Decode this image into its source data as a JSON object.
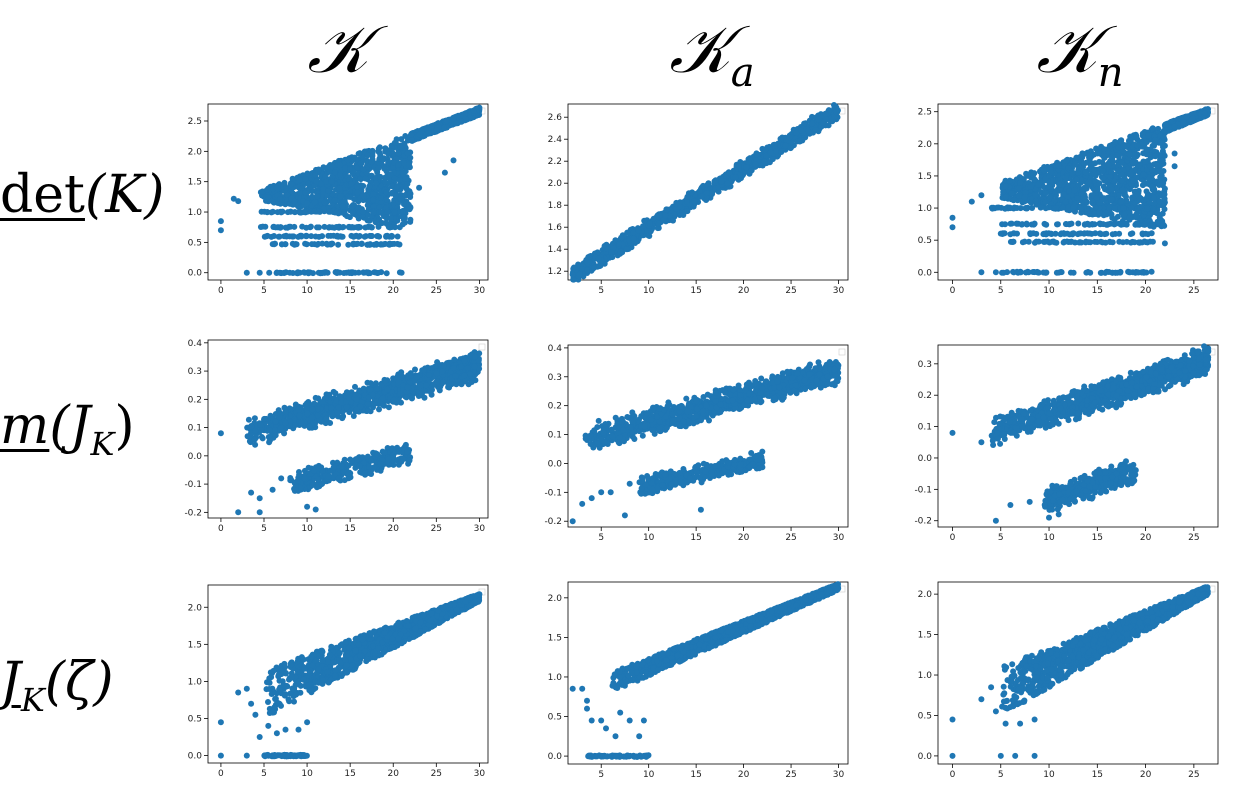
{
  "column_headers": [
    {
      "main": "𝒦",
      "sub": ""
    },
    {
      "main": "𝒦",
      "sub": "a"
    },
    {
      "main": "𝒦",
      "sub": "n"
    }
  ],
  "row_labels": [
    {
      "under": "det",
      "rest": "(K)",
      "sub": ""
    },
    {
      "under": "m",
      "rest": "(J",
      "sub": "K",
      "close": ")"
    },
    {
      "under": "J",
      "rest": "",
      "sub": "K",
      "close": "(ζ)"
    }
  ],
  "colors": {
    "marker": "#1f77b4",
    "axis": "#000000"
  },
  "chart_data": [
    {
      "type": "scatter",
      "row": 0,
      "col": 0,
      "shape": "fan",
      "xlim": [
        -1.5,
        31
      ],
      "ylim": [
        -0.12,
        2.78
      ],
      "xticks": [
        "0",
        "5",
        "10",
        "15",
        "20",
        "25",
        "30"
      ],
      "yticks": [
        "0.0",
        "0.5",
        "1.0",
        "1.5",
        "2.0",
        "2.5"
      ],
      "tick_values_x": [
        0,
        5,
        10,
        15,
        20,
        25,
        30
      ],
      "tick_values_y": [
        0,
        0.5,
        1.0,
        1.5,
        2.0,
        2.5
      ],
      "main": {
        "x0": 4.5,
        "x1": 30,
        "ylo0": 1.2,
        "ylo1": 2.6,
        "yhi0": 1.35,
        "yhi1": 2.72,
        "xmid": 21,
        "ymidlo": 0.75
      },
      "bands": [
        {
          "x0": 5.5,
          "x1": 21,
          "y": 0.0
        },
        {
          "x0": 6,
          "x1": 21,
          "y": 0.47
        },
        {
          "x0": 5,
          "x1": 21,
          "y": 0.6
        },
        {
          "x0": 4.5,
          "x1": 21,
          "y": 0.75
        },
        {
          "x0": 4,
          "x1": 21,
          "y": 1.0
        }
      ],
      "outliers": [
        [
          0,
          0.85
        ],
        [
          0,
          0.7
        ],
        [
          3,
          0.0
        ],
        [
          4.5,
          0.0
        ],
        [
          2,
          1.18
        ],
        [
          1.5,
          1.22
        ],
        [
          8,
          0.0
        ],
        [
          22,
          1.3
        ],
        [
          23,
          1.4
        ],
        [
          27,
          1.85
        ],
        [
          26,
          1.65
        ]
      ]
    },
    {
      "type": "scatter",
      "row": 0,
      "col": 1,
      "shape": "band",
      "xlim": [
        1.5,
        31
      ],
      "ylim": [
        1.12,
        2.72
      ],
      "xticks": [
        "5",
        "10",
        "15",
        "20",
        "25",
        "30"
      ],
      "yticks": [
        "1.2",
        "1.4",
        "1.6",
        "1.8",
        "2.0",
        "2.2",
        "2.4",
        "2.6"
      ],
      "tick_values_x": [
        5,
        10,
        15,
        20,
        25,
        30
      ],
      "tick_values_y": [
        1.2,
        1.4,
        1.6,
        1.8,
        2.0,
        2.2,
        2.4,
        2.6
      ],
      "main": {
        "x0": 2,
        "x1": 30,
        "y0": 1.17,
        "y1": 2.66,
        "width": 0.06
      },
      "outliers": [
        [
          2,
          1.17
        ],
        [
          3,
          1.22
        ],
        [
          3.5,
          1.21
        ]
      ]
    },
    {
      "type": "scatter",
      "row": 0,
      "col": 2,
      "shape": "fan",
      "xlim": [
        -1.5,
        27.5
      ],
      "ylim": [
        -0.12,
        2.62
      ],
      "xticks": [
        "0",
        "5",
        "10",
        "15",
        "20",
        "25"
      ],
      "yticks": [
        "0.0",
        "0.5",
        "1.0",
        "1.5",
        "2.0",
        "2.5"
      ],
      "tick_values_x": [
        0,
        5,
        10,
        15,
        20,
        25
      ],
      "tick_values_y": [
        0,
        0.5,
        1.0,
        1.5,
        2.0,
        2.5
      ],
      "main": {
        "x0": 5,
        "x1": 26.5,
        "ylo0": 1.15,
        "ylo1": 2.45,
        "yhi0": 1.4,
        "yhi1": 2.55,
        "xmid": 21,
        "ymidlo": 0.7
      },
      "bands": [
        {
          "x0": 5,
          "x1": 21,
          "y": 0.0
        },
        {
          "x0": 6,
          "x1": 21,
          "y": 0.47
        },
        {
          "x0": 5,
          "x1": 21,
          "y": 0.6
        },
        {
          "x0": 5,
          "x1": 21,
          "y": 0.75
        },
        {
          "x0": 4,
          "x1": 21,
          "y": 1.0
        }
      ],
      "outliers": [
        [
          0,
          0.85
        ],
        [
          0,
          0.7
        ],
        [
          3,
          0.0
        ],
        [
          4.5,
          0.0
        ],
        [
          2,
          1.1
        ],
        [
          3,
          1.2
        ],
        [
          22,
          0.45
        ],
        [
          22,
          1.3
        ],
        [
          23,
          1.65
        ],
        [
          23,
          1.85
        ]
      ]
    },
    {
      "type": "scatter",
      "row": 1,
      "col": 0,
      "shape": "two-band",
      "xlim": [
        -1.5,
        31
      ],
      "ylim": [
        -0.22,
        0.41
      ],
      "xticks": [
        "0",
        "5",
        "10",
        "15",
        "20",
        "25",
        "30"
      ],
      "yticks": [
        "-0.2",
        "-0.1",
        "0.0",
        "0.1",
        "0.2",
        "0.3",
        "0.4"
      ],
      "tick_values_x": [
        0,
        5,
        10,
        15,
        20,
        25,
        30
      ],
      "tick_values_y": [
        -0.2,
        -0.1,
        0,
        0.1,
        0.2,
        0.3,
        0.4
      ],
      "upper": {
        "x0": 3,
        "x1": 30,
        "y0": 0.08,
        "y1": 0.32,
        "width": 0.04
      },
      "lower": {
        "x0": 8,
        "x1": 22,
        "y0": -0.1,
        "y1": 0.01,
        "width": 0.03
      },
      "outliers": [
        [
          0,
          0.08
        ],
        [
          2,
          -0.2
        ],
        [
          4.5,
          -0.2
        ],
        [
          4.5,
          -0.15
        ],
        [
          6,
          -0.12
        ],
        [
          3.5,
          -0.13
        ],
        [
          7,
          -0.08
        ],
        [
          10,
          -0.18
        ],
        [
          11,
          -0.19
        ]
      ]
    },
    {
      "type": "scatter",
      "row": 1,
      "col": 1,
      "shape": "two-band",
      "xlim": [
        1.5,
        31
      ],
      "ylim": [
        -0.22,
        0.41
      ],
      "xticks": [
        "5",
        "10",
        "15",
        "20",
        "25",
        "30"
      ],
      "yticks": [
        "-0.2",
        "-0.1",
        "0.0",
        "0.1",
        "0.2",
        "0.3",
        "0.4"
      ],
      "tick_values_x": [
        5,
        10,
        15,
        20,
        25,
        30
      ],
      "tick_values_y": [
        -0.2,
        -0.1,
        0,
        0.1,
        0.2,
        0.3,
        0.4
      ],
      "upper": {
        "x0": 3,
        "x1": 30,
        "y0": 0.08,
        "y1": 0.32,
        "width": 0.035
      },
      "lower": {
        "x0": 9,
        "x1": 22,
        "y0": -0.08,
        "y1": 0.01,
        "width": 0.025
      },
      "outliers": [
        [
          2,
          -0.2
        ],
        [
          3,
          -0.14
        ],
        [
          4,
          -0.12
        ],
        [
          5,
          -0.1
        ],
        [
          6,
          -0.1
        ],
        [
          7.5,
          -0.18
        ],
        [
          8,
          -0.07
        ],
        [
          15.5,
          -0.16
        ]
      ]
    },
    {
      "type": "scatter",
      "row": 1,
      "col": 2,
      "shape": "two-band",
      "xlim": [
        -1.5,
        27.5
      ],
      "ylim": [
        -0.22,
        0.36
      ],
      "xticks": [
        "0",
        "5",
        "10",
        "15",
        "20",
        "25"
      ],
      "yticks": [
        "-0.2",
        "-0.1",
        "0.0",
        "0.1",
        "0.2",
        "0.3"
      ],
      "tick_values_x": [
        0,
        5,
        10,
        15,
        20,
        25
      ],
      "tick_values_y": [
        -0.2,
        -0.1,
        0,
        0.1,
        0.2,
        0.3
      ],
      "upper": {
        "x0": 4,
        "x1": 26.5,
        "y0": 0.08,
        "y1": 0.31,
        "width": 0.035
      },
      "lower": {
        "x0": 9.5,
        "x1": 19,
        "y0": -0.14,
        "y1": -0.04,
        "width": 0.03
      },
      "outliers": [
        [
          0,
          0.08
        ],
        [
          4.5,
          -0.2
        ],
        [
          6,
          -0.15
        ],
        [
          8,
          -0.14
        ],
        [
          10,
          -0.19
        ],
        [
          11,
          -0.18
        ],
        [
          3,
          0.05
        ]
      ]
    },
    {
      "type": "scatter",
      "row": 2,
      "col": 0,
      "shape": "fan-up",
      "xlim": [
        -1.5,
        31
      ],
      "ylim": [
        -0.1,
        2.3
      ],
      "xticks": [
        "0",
        "5",
        "10",
        "15",
        "20",
        "25",
        "30"
      ],
      "yticks": [
        "0.0",
        "0.5",
        "1.0",
        "1.5",
        "2.0"
      ],
      "tick_values_x": [
        0,
        5,
        10,
        15,
        20,
        25,
        30
      ],
      "tick_values_y": [
        0,
        0.5,
        1.0,
        1.5,
        2.0
      ],
      "main": {
        "x0": 5,
        "x1": 30,
        "ylo0": 0.5,
        "ylo1": 2.08,
        "yhi0": 1.15,
        "yhi1": 2.18
      },
      "bands": [
        {
          "x0": 5,
          "x1": 10,
          "y": 0.0
        }
      ],
      "outliers": [
        [
          0,
          0.45
        ],
        [
          0,
          0.0
        ],
        [
          2,
          0.85
        ],
        [
          3,
          0.9
        ],
        [
          3.5,
          0.7
        ],
        [
          4,
          0.55
        ],
        [
          3,
          0.0
        ],
        [
          4.5,
          0.25
        ],
        [
          5.5,
          0.4
        ],
        [
          6.5,
          0.3
        ],
        [
          7.5,
          0.35
        ],
        [
          9,
          0.35
        ],
        [
          10,
          0.45
        ]
      ]
    },
    {
      "type": "scatter",
      "row": 2,
      "col": 1,
      "shape": "fan-up",
      "xlim": [
        1.5,
        31
      ],
      "ylim": [
        -0.1,
        2.2
      ],
      "xticks": [
        "5",
        "10",
        "15",
        "20",
        "25",
        "30"
      ],
      "yticks": [
        "0.0",
        "0.5",
        "1.0",
        "1.5",
        "2.0"
      ],
      "tick_values_x": [
        5,
        10,
        15,
        20,
        25,
        30
      ],
      "tick_values_y": [
        0,
        0.5,
        1.0,
        1.5,
        2.0
      ],
      "main": {
        "x0": 6,
        "x1": 30,
        "ylo0": 0.8,
        "ylo1": 2.1,
        "yhi0": 1.05,
        "yhi1": 2.18
      },
      "bands": [
        {
          "x0": 3.5,
          "x1": 10,
          "y": 0.0
        }
      ],
      "outliers": [
        [
          2,
          0.85
        ],
        [
          3,
          0.85
        ],
        [
          3.5,
          0.7
        ],
        [
          3.5,
          0.6
        ],
        [
          4,
          0.45
        ],
        [
          5,
          0.45
        ],
        [
          5.5,
          0.35
        ],
        [
          6.5,
          0.25
        ],
        [
          7,
          0.55
        ],
        [
          8,
          0.45
        ],
        [
          9,
          0.25
        ],
        [
          9.5,
          0.45
        ]
      ]
    },
    {
      "type": "scatter",
      "row": 2,
      "col": 2,
      "shape": "fan-up",
      "xlim": [
        -1.5,
        27.5
      ],
      "ylim": [
        -0.1,
        2.15
      ],
      "xticks": [
        "0",
        "5",
        "10",
        "15",
        "20",
        "25"
      ],
      "yticks": [
        "0.0",
        "0.5",
        "1.0",
        "1.5",
        "2.0"
      ],
      "tick_values_x": [
        0,
        5,
        10,
        15,
        20,
        25
      ],
      "tick_values_y": [
        0,
        0.5,
        1.0,
        1.5,
        2.0
      ],
      "main": {
        "x0": 5,
        "x1": 26.5,
        "ylo0": 0.5,
        "ylo1": 2.0,
        "yhi0": 1.1,
        "yhi1": 2.1
      },
      "bands": [],
      "outliers": [
        [
          0,
          0.45
        ],
        [
          0,
          0.0
        ],
        [
          5,
          0.0
        ],
        [
          6.5,
          0.0
        ],
        [
          8.5,
          0.0
        ],
        [
          3,
          0.7
        ],
        [
          4,
          0.85
        ],
        [
          4.5,
          0.55
        ],
        [
          5.5,
          0.4
        ],
        [
          7,
          0.4
        ],
        [
          8.5,
          0.45
        ]
      ]
    }
  ]
}
